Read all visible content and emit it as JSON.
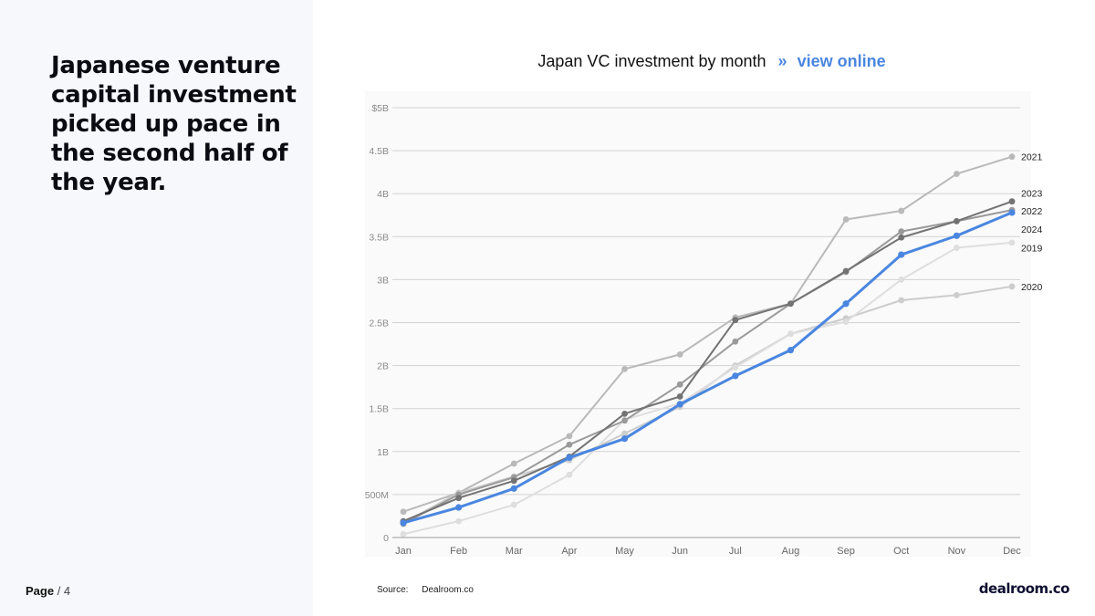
{
  "headline": "Japanese venture capital investment picked up pace in the second half of the year.",
  "page": {
    "label": "Page",
    "number": "/ 4"
  },
  "chart_header": {
    "title": "Japan VC investment by month",
    "separator": "»",
    "link_label": "view online"
  },
  "source": {
    "label": "Source:",
    "value": "Dealroom.co"
  },
  "brand": "dealroom.co",
  "chart_data": {
    "type": "line",
    "title": "Japan VC investment by month",
    "xlabel": "",
    "ylabel": "",
    "categories": [
      "Jan",
      "Feb",
      "Mar",
      "Apr",
      "May",
      "Jun",
      "Jul",
      "Aug",
      "Sep",
      "Oct",
      "Nov",
      "Dec"
    ],
    "ylim": [
      0,
      5000000000
    ],
    "y_ticks": [
      0,
      500000000,
      1000000000,
      1500000000,
      2000000000,
      2500000000,
      3000000000,
      3500000000,
      4000000000,
      4500000000,
      5000000000
    ],
    "y_tick_labels": [
      "0",
      "500M",
      "1B",
      "1.5B",
      "2B",
      "2.5B",
      "3B",
      "3.5B",
      "4B",
      "4.5B",
      "$5B"
    ],
    "grid": true,
    "legend": "end-labels",
    "series": [
      {
        "name": "2021",
        "color": "#b9b9b9",
        "values": [
          0.3,
          0.52,
          0.86,
          1.18,
          1.96,
          2.13,
          2.56,
          2.72,
          3.7,
          3.8,
          4.23,
          4.43
        ]
      },
      {
        "name": "2020",
        "color": "#cccccc",
        "values": [
          0.17,
          0.52,
          0.71,
          0.9,
          1.21,
          1.52,
          2.0,
          2.37,
          2.55,
          2.76,
          2.82,
          2.92
        ]
      },
      {
        "name": "2019",
        "color": "#dedede",
        "values": [
          0.04,
          0.19,
          0.38,
          0.73,
          1.37,
          1.56,
          1.98,
          2.37,
          2.51,
          3.0,
          3.37,
          3.43
        ]
      },
      {
        "name": "2022",
        "color": "#9a9a9a",
        "values": [
          0.16,
          0.5,
          0.7,
          1.08,
          1.36,
          1.78,
          2.28,
          2.72,
          3.09,
          3.56,
          3.68,
          3.81
        ]
      },
      {
        "name": "2023",
        "color": "#737373",
        "values": [
          0.19,
          0.46,
          0.66,
          0.94,
          1.44,
          1.64,
          2.53,
          2.72,
          3.1,
          3.49,
          3.68,
          3.91
        ]
      },
      {
        "name": "2024",
        "color": "#4a86e0",
        "values": [
          0.17,
          0.35,
          0.57,
          0.93,
          1.15,
          1.55,
          1.88,
          2.18,
          2.72,
          3.29,
          3.51,
          3.78
        ]
      }
    ]
  }
}
